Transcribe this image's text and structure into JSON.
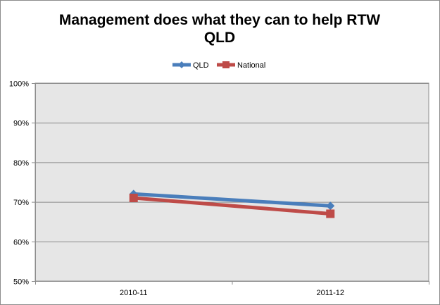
{
  "chart_data": {
    "type": "line",
    "title": "Management does what they can to help RTW",
    "subtitle": "QLD",
    "categories": [
      "2010-11",
      "2011-12"
    ],
    "series": [
      {
        "name": "QLD",
        "values": [
          72,
          69
        ],
        "color": "#4a7ebb",
        "marker": "diamond"
      },
      {
        "name": "National",
        "values": [
          71,
          67
        ],
        "color": "#be4b48",
        "marker": "square"
      }
    ],
    "ylim": [
      50,
      100
    ],
    "yticks": [
      50,
      60,
      70,
      80,
      90,
      100
    ],
    "ytick_labels": [
      "50%",
      "60%",
      "70%",
      "80%",
      "90%",
      "100%"
    ],
    "xlabel": "",
    "ylabel": "",
    "legend_position": "top",
    "grid": true,
    "plot_background": "#e6e6e6"
  }
}
